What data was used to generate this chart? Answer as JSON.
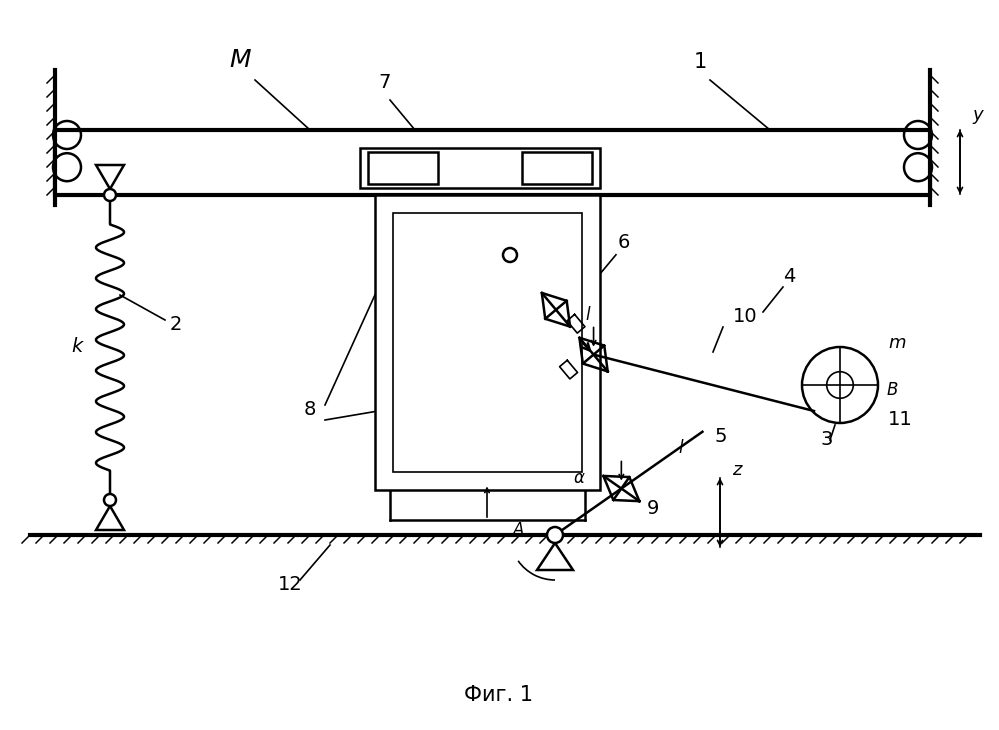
{
  "title": "Фиг. 1",
  "bg_color": "#ffffff",
  "line_color": "#000000",
  "fig_width": 9.99,
  "fig_height": 7.3,
  "dpi": 100
}
